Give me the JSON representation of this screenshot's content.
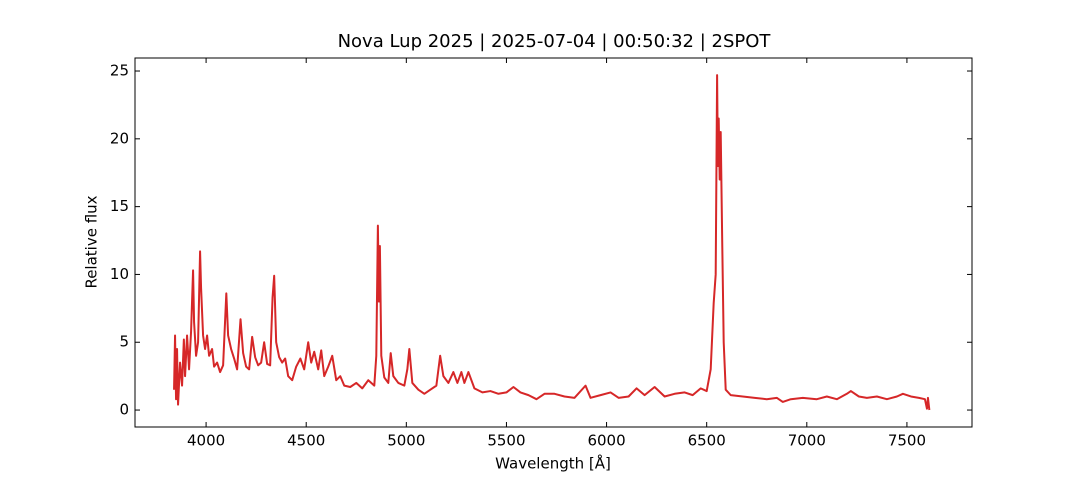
{
  "chart_data": {
    "type": "line",
    "title": "Nova Lup 2025 | 2025-07-04 | 00:50:32 | 2SPOT",
    "x_label": "Wavelength [Å]",
    "y_label": "Relative flux",
    "xlim": [
      3645,
      7825
    ],
    "ylim": [
      -1.25,
      25.96
    ],
    "xticks": [
      4000,
      4500,
      5000,
      5500,
      6000,
      6500,
      7000,
      7500
    ],
    "yticks": [
      0,
      5,
      10,
      15,
      20,
      25
    ],
    "series": [
      {
        "color": "#d62728",
        "x": [
          3840,
          3845,
          3850,
          3855,
          3860,
          3870,
          3880,
          3889,
          3895,
          3905,
          3915,
          3925,
          3935,
          3940,
          3950,
          3960,
          3970,
          3975,
          3985,
          3995,
          4005,
          4015,
          4030,
          4040,
          4055,
          4070,
          4085,
          4101,
          4110,
          4125,
          4140,
          4155,
          4172,
          4185,
          4200,
          4215,
          4230,
          4245,
          4260,
          4275,
          4290,
          4305,
          4320,
          4332,
          4340,
          4350,
          4365,
          4380,
          4395,
          4410,
          4430,
          4450,
          4471,
          4490,
          4510,
          4525,
          4540,
          4560,
          4575,
          4590,
          4610,
          4630,
          4650,
          4670,
          4690,
          4720,
          4750,
          4780,
          4810,
          4840,
          4850,
          4858,
          4863,
          4868,
          4875,
          4890,
          4910,
          4922,
          4935,
          4960,
          4990,
          5005,
          5015,
          5030,
          5060,
          5090,
          5120,
          5150,
          5169,
          5185,
          5210,
          5235,
          5255,
          5275,
          5290,
          5310,
          5340,
          5380,
          5420,
          5460,
          5500,
          5535,
          5570,
          5610,
          5650,
          5690,
          5740,
          5790,
          5840,
          5895,
          5920,
          5970,
          6020,
          6060,
          6110,
          6150,
          6190,
          6240,
          6290,
          6340,
          6390,
          6430,
          6470,
          6500,
          6520,
          6535,
          6545,
          6552,
          6556,
          6560,
          6565,
          6570,
          6578,
          6585,
          6595,
          6620,
          6680,
          6740,
          6800,
          6850,
          6880,
          6920,
          6980,
          7050,
          7100,
          7150,
          7200,
          7220,
          7260,
          7300,
          7350,
          7400,
          7450,
          7480,
          7520,
          7560,
          7590,
          7600,
          7605,
          7612
        ],
        "values": [
          1.5,
          5.5,
          0.8,
          4.5,
          0.4,
          3.5,
          1.8,
          5.2,
          2.5,
          5.5,
          3.0,
          5.8,
          10.3,
          6.5,
          4.0,
          5.0,
          11.7,
          9.0,
          5.5,
          4.5,
          5.5,
          4.0,
          4.5,
          3.2,
          3.5,
          2.8,
          3.3,
          8.6,
          5.5,
          4.5,
          3.8,
          3.0,
          6.7,
          4.2,
          3.2,
          3.0,
          5.4,
          3.9,
          3.3,
          3.5,
          5.0,
          3.4,
          3.3,
          8.3,
          9.9,
          5.0,
          3.9,
          3.5,
          3.8,
          2.5,
          2.2,
          3.2,
          3.8,
          3.0,
          5.0,
          3.5,
          4.3,
          3.0,
          4.4,
          2.5,
          3.2,
          4.0,
          2.2,
          2.5,
          1.8,
          1.7,
          2.0,
          1.6,
          2.2,
          1.8,
          4.0,
          13.6,
          8.0,
          12.1,
          4.0,
          2.4,
          2.0,
          4.2,
          2.5,
          2.0,
          1.8,
          3.0,
          4.5,
          2.0,
          1.5,
          1.2,
          1.5,
          1.8,
          4.0,
          2.5,
          2.0,
          2.8,
          2.0,
          2.8,
          2.0,
          2.8,
          1.6,
          1.3,
          1.4,
          1.2,
          1.3,
          1.7,
          1.3,
          1.1,
          0.8,
          1.2,
          1.2,
          1.0,
          0.9,
          1.8,
          0.9,
          1.1,
          1.3,
          0.9,
          1.0,
          1.6,
          1.1,
          1.7,
          1.0,
          1.2,
          1.3,
          1.1,
          1.6,
          1.4,
          3.0,
          7.9,
          10,
          24.7,
          18,
          21.5,
          17,
          20.5,
          12,
          5,
          1.5,
          1.1,
          1.0,
          0.9,
          0.8,
          0.9,
          0.6,
          0.8,
          0.9,
          0.8,
          1.0,
          0.8,
          1.2,
          1.4,
          1.0,
          0.9,
          1.0,
          0.8,
          1.0,
          1.2,
          1.0,
          0.9,
          0.8,
          0.1,
          0.9,
          0.0
        ]
      }
    ]
  }
}
